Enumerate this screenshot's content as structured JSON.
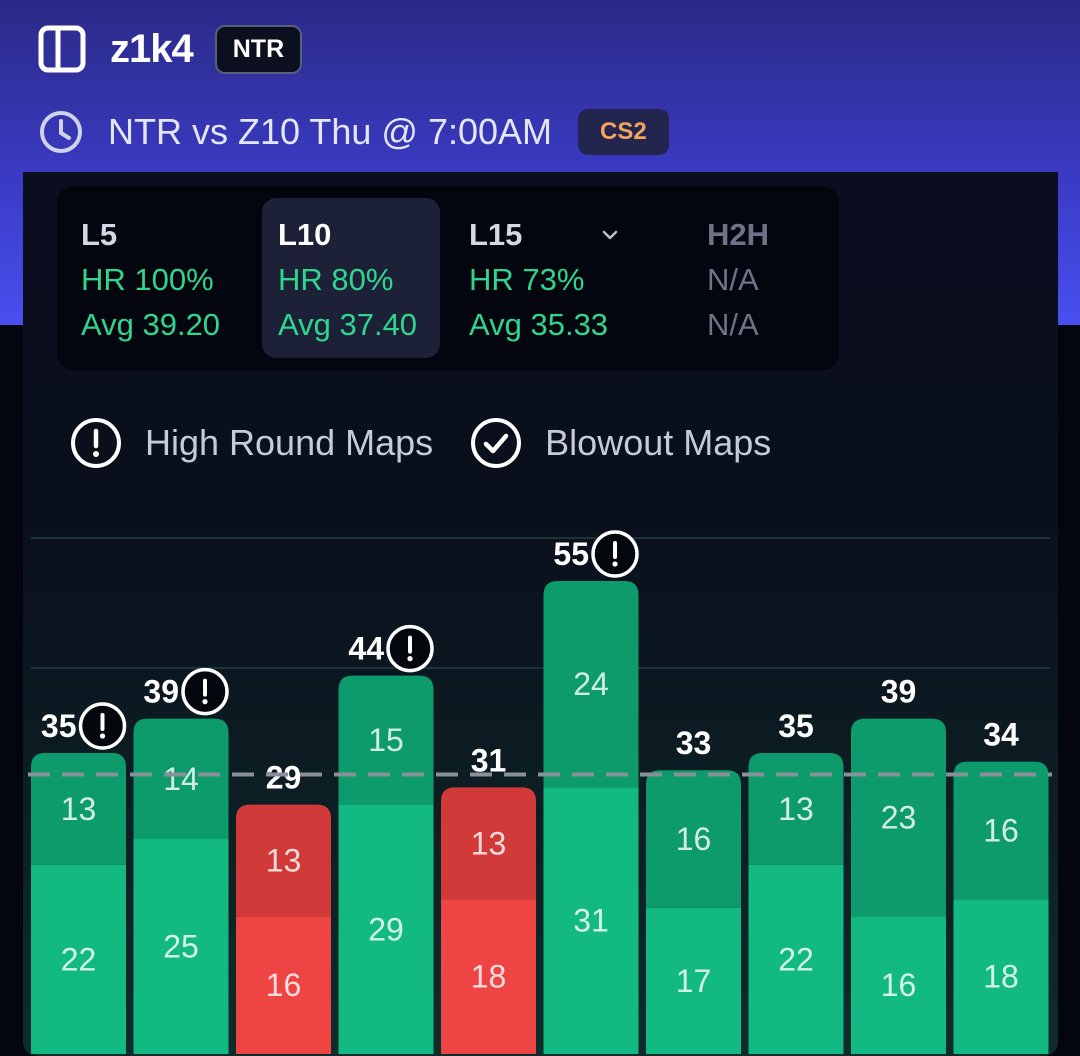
{
  "header": {
    "player": "z1k4",
    "team_badge": "NTR",
    "match": "NTR vs Z10 Thu @ 7:00AM",
    "game_badge": "CS2"
  },
  "tabs": [
    {
      "label": "L5",
      "hr": "HR 100%",
      "avg": "Avg 39.20",
      "active": false
    },
    {
      "label": "L10",
      "hr": "HR 80%",
      "avg": "Avg 37.40",
      "active": true
    },
    {
      "label": "L15",
      "hr": "HR 73%",
      "avg": "Avg 35.33",
      "active": false,
      "has_dropdown": true
    },
    {
      "label": "H2H",
      "hr": "N/A",
      "avg": "N/A",
      "active": false,
      "disabled": true
    }
  ],
  "legend": {
    "high_round": "High Round Maps",
    "blowout": "Blowout Maps"
  },
  "colors": {
    "hit_bottom": "#12b981",
    "hit_top": "#0e9b6c",
    "miss_bottom": "#ef4444",
    "miss_top": "#d23a3a"
  },
  "chart_data": {
    "type": "bar",
    "stacked": true,
    "line": 32.5,
    "ylim": [
      0,
      60
    ],
    "bars": [
      {
        "total": 35,
        "bottom": 22,
        "top": 13,
        "hit": true,
        "high_round": true
      },
      {
        "total": 39,
        "bottom": 25,
        "top": 14,
        "hit": true,
        "high_round": true
      },
      {
        "total": 29,
        "bottom": 16,
        "top": 13,
        "hit": false,
        "high_round": false
      },
      {
        "total": 44,
        "bottom": 29,
        "top": 15,
        "hit": true,
        "high_round": true
      },
      {
        "total": 31,
        "bottom": 18,
        "top": 13,
        "hit": false,
        "high_round": false
      },
      {
        "total": 55,
        "bottom": 31,
        "top": 24,
        "hit": true,
        "high_round": true
      },
      {
        "total": 33,
        "bottom": 17,
        "top": 16,
        "hit": true,
        "high_round": false
      },
      {
        "total": 35,
        "bottom": 22,
        "top": 13,
        "hit": true,
        "high_round": false
      },
      {
        "total": 39,
        "bottom": 16,
        "top": 23,
        "hit": true,
        "high_round": false
      },
      {
        "total": 34,
        "bottom": 18,
        "top": 16,
        "hit": true,
        "high_round": false
      }
    ]
  }
}
